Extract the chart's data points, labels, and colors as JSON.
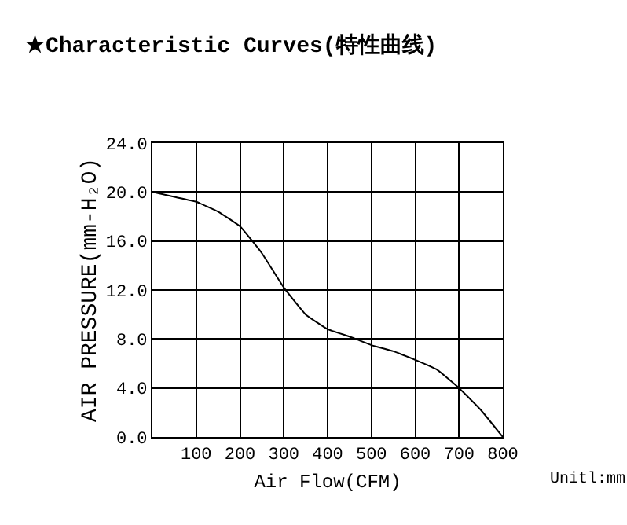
{
  "chart_data": {
    "type": "line",
    "title": "★Characteristic Curves(特性曲线)",
    "xlabel": "Air Flow(CFM)",
    "ylabel": "AIR PRESSURE(mm-H₂O)",
    "annotations": [
      "Unitl:mm"
    ],
    "x": [
      0,
      50,
      100,
      150,
      200,
      250,
      300,
      350,
      400,
      450,
      500,
      550,
      600,
      650,
      700,
      750,
      800
    ],
    "series": [
      {
        "color": "#000000",
        "values": [
          20,
          19.6,
          19.2,
          18.4,
          17.2,
          15,
          12.2,
          10,
          8.8,
          8.2,
          7.5,
          7,
          6.3,
          5.5,
          4,
          2.2,
          0
        ]
      }
    ],
    "xlim": [
      0,
      800
    ],
    "xticks": [
      100,
      200,
      300,
      400,
      500,
      600,
      700,
      800
    ],
    "ylim": [
      0,
      24
    ],
    "yticks": [
      {
        "value": 0,
        "label": "0.0"
      },
      {
        "value": 4,
        "label": "4.0"
      },
      {
        "value": 8,
        "label": "8.0"
      },
      {
        "value": 12,
        "label": "12.0"
      },
      {
        "value": 16,
        "label": "16.0"
      },
      {
        "value": 20,
        "label": "20.0"
      },
      {
        "value": 24,
        "label": "24.0"
      }
    ],
    "grid": true,
    "marker": "none",
    "line_style": "solid"
  }
}
